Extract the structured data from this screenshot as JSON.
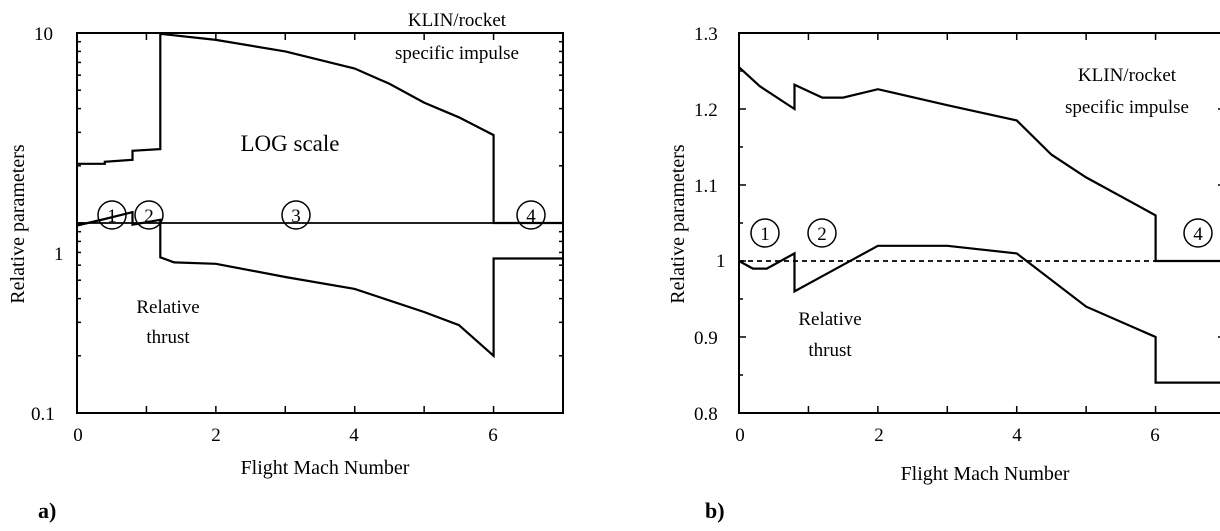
{
  "chart_data": [
    {
      "type": "line",
      "panel_label": "a)",
      "xlabel": "Flight Mach Number",
      "ylabel": "Relative parameters",
      "xlim": [
        0,
        7
      ],
      "ylim": [
        0.1,
        10
      ],
      "yscale": "log",
      "x_ticks": [
        "0",
        "2",
        "4",
        "6"
      ],
      "y_ticks": [
        "0.1",
        "1",
        "10"
      ],
      "annotations": {
        "isp_label_1": "KLIN/rocket",
        "isp_label_2": "specific impulse",
        "scale_note": "LOG scale",
        "thrust_label_1": "Relative",
        "thrust_label_2": "thrust",
        "regions": [
          "1",
          "2",
          "3",
          "4"
        ]
      },
      "reference_line": {
        "y": 1,
        "style": "solid"
      },
      "series": [
        {
          "label_key": "specific-impulse",
          "x": [
            0,
            0.4,
            0.4,
            0.8,
            0.8,
            1.2,
            1.2,
            2,
            3,
            4,
            4.5,
            5,
            5.5,
            6,
            6,
            7
          ],
          "y": [
            2.05,
            2.05,
            2.1,
            2.15,
            2.4,
            2.45,
            9.9,
            9.2,
            8.0,
            6.5,
            5.4,
            4.3,
            3.6,
            2.9,
            1.0,
            1.0
          ]
        },
        {
          "label_key": "relative-thrust",
          "x": [
            0,
            0.4,
            0.8,
            0.8,
            1.2,
            1.2,
            1.4,
            2,
            3,
            4,
            5,
            5.5,
            6,
            6,
            7
          ],
          "y": [
            0.97,
            1.05,
            1.14,
            0.98,
            1.04,
            0.66,
            0.62,
            0.61,
            0.52,
            0.45,
            0.34,
            0.29,
            0.2,
            0.65,
            0.65
          ]
        }
      ]
    },
    {
      "type": "line",
      "panel_label": "b)",
      "xlabel": "Flight Mach Number",
      "ylabel": "Relative parameters",
      "xlim": [
        0,
        7
      ],
      "ylim": [
        0.8,
        1.3
      ],
      "yscale": "linear",
      "x_ticks": [
        "0",
        "2",
        "4",
        "6"
      ],
      "y_ticks": [
        "0.8",
        "0.9",
        "1",
        "1.1",
        "1.2",
        "1.3"
      ],
      "annotations": {
        "isp_label_1": "KLIN/rocket",
        "isp_label_2": "specific impulse",
        "thrust_label_1": "Relative",
        "thrust_label_2": "thrust",
        "regions": [
          "1",
          "2",
          "4"
        ]
      },
      "reference_line": {
        "y": 1,
        "style": "dashed"
      },
      "series": [
        {
          "label_key": "specific-impulse",
          "x": [
            0,
            0.3,
            0.8,
            0.8,
            1.2,
            1.5,
            2,
            3,
            4,
            4.5,
            5,
            6,
            6,
            7
          ],
          "y": [
            1.255,
            1.23,
            1.2,
            1.232,
            1.215,
            1.215,
            1.226,
            1.205,
            1.185,
            1.14,
            1.11,
            1.06,
            1.0,
            1.0
          ]
        },
        {
          "label_key": "relative-thrust",
          "x": [
            0,
            0.2,
            0.4,
            0.8,
            0.8,
            1.2,
            2,
            3,
            4,
            5,
            6,
            6,
            7
          ],
          "y": [
            1.0,
            0.99,
            0.99,
            1.01,
            0.96,
            0.98,
            1.02,
            1.02,
            1.01,
            0.94,
            0.9,
            0.84,
            0.84
          ]
        }
      ]
    }
  ]
}
